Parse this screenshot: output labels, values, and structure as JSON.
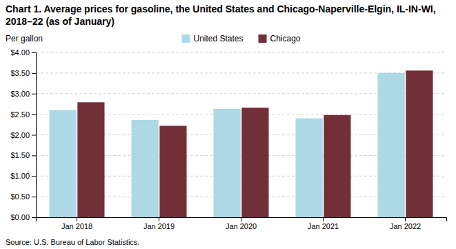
{
  "chart_data": {
    "type": "bar",
    "title": "Chart 1. Average prices for gasoline, the United States and Chicago-Naperville-Elgin, IL-IN-WI, 2018–22 (as of January)",
    "ylabel": "Per gallon",
    "source": "Source: U.S. Bureau of Labor Statistics.",
    "categories": [
      "Jan 2018",
      "Jan 2019",
      "Jan 2020",
      "Jan 2021",
      "Jan 2022"
    ],
    "series": [
      {
        "name": "United States",
        "color": "#ADD8E6",
        "values": [
          2.6,
          2.36,
          2.63,
          2.4,
          3.5
        ]
      },
      {
        "name": "Chicago",
        "color": "#722F37",
        "values": [
          2.79,
          2.22,
          2.66,
          2.48,
          3.56
        ]
      }
    ],
    "ylim": [
      0,
      4.0
    ],
    "yticks": [
      {
        "value": 0.0,
        "label": "$0.00"
      },
      {
        "value": 0.5,
        "label": "$0.50"
      },
      {
        "value": 1.0,
        "label": "$1.00"
      },
      {
        "value": 1.5,
        "label": "$1.50"
      },
      {
        "value": 2.0,
        "label": "$2.00"
      },
      {
        "value": 2.5,
        "label": "$2.50"
      },
      {
        "value": 3.0,
        "label": "$3.00"
      },
      {
        "value": 3.5,
        "label": "$3.50"
      },
      {
        "value": 4.0,
        "label": "$4.00"
      }
    ],
    "grid": true,
    "legend": "top"
  }
}
